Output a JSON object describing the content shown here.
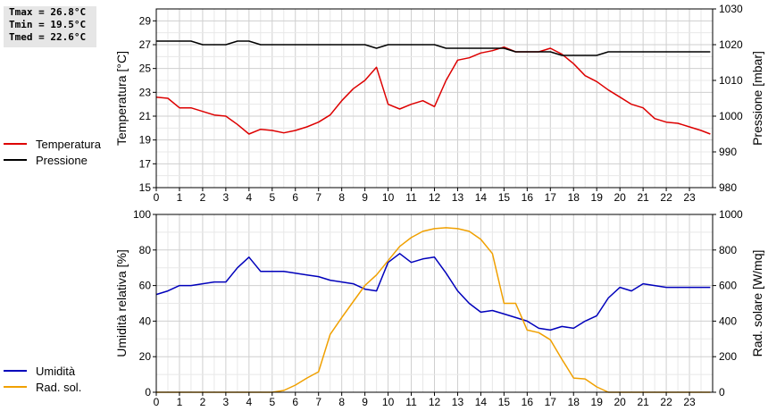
{
  "stats": {
    "tmax": "Tmax = 26.8°C",
    "tmin": "Tmin = 19.5°C",
    "tmed": "Tmed = 22.6°C"
  },
  "chart_data": [
    {
      "type": "line",
      "xlabel": "",
      "xlim": [
        0,
        24
      ],
      "x_ticks": [
        "0",
        "1",
        "2",
        "3",
        "4",
        "5",
        "6",
        "7",
        "8",
        "9",
        "10",
        "11",
        "12",
        "13",
        "14",
        "15",
        "16",
        "17",
        "18",
        "19",
        "20",
        "21",
        "22",
        "23"
      ],
      "ylabel": "Temperatura [°C]",
      "ylim": [
        15,
        30
      ],
      "y_ticks": [
        15,
        17,
        19,
        21,
        23,
        25,
        27,
        29
      ],
      "y2label": "Pressione [mbar]",
      "y2lim": [
        980,
        1030
      ],
      "y2_ticks": [
        980,
        990,
        1000,
        1010,
        1020,
        1030
      ],
      "grid": true,
      "legend": "left",
      "series": [
        {
          "name": "Temperatura",
          "axis": "left",
          "color": "#dd0000",
          "points": [
            [
              0,
              22.6
            ],
            [
              0.5,
              22.5
            ],
            [
              1,
              21.7
            ],
            [
              1.5,
              21.7
            ],
            [
              2,
              21.4
            ],
            [
              2.5,
              21.1
            ],
            [
              3,
              21.0
            ],
            [
              3.5,
              20.3
            ],
            [
              4,
              19.5
            ],
            [
              4.5,
              19.9
            ],
            [
              5,
              19.8
            ],
            [
              5.5,
              19.6
            ],
            [
              6,
              19.8
            ],
            [
              6.5,
              20.1
            ],
            [
              7,
              20.5
            ],
            [
              7.5,
              21.1
            ],
            [
              8,
              22.3
            ],
            [
              8.5,
              23.3
            ],
            [
              9,
              24.0
            ],
            [
              9.5,
              25.1
            ],
            [
              10,
              22.0
            ],
            [
              10.5,
              21.6
            ],
            [
              11,
              22.0
            ],
            [
              11.5,
              22.3
            ],
            [
              12,
              21.8
            ],
            [
              12.5,
              24.0
            ],
            [
              13,
              25.7
            ],
            [
              13.5,
              25.9
            ],
            [
              14,
              26.3
            ],
            [
              14.5,
              26.5
            ],
            [
              15,
              26.8
            ],
            [
              15.5,
              26.4
            ],
            [
              16,
              26.4
            ],
            [
              16.5,
              26.4
            ],
            [
              17,
              26.7
            ],
            [
              17.5,
              26.2
            ],
            [
              18,
              25.4
            ],
            [
              18.5,
              24.4
            ],
            [
              19,
              23.9
            ],
            [
              19.5,
              23.2
            ],
            [
              20,
              22.6
            ],
            [
              20.5,
              22.0
            ],
            [
              21,
              21.7
            ],
            [
              21.5,
              20.8
            ],
            [
              22,
              20.5
            ],
            [
              22.5,
              20.4
            ],
            [
              23,
              20.1
            ],
            [
              23.5,
              19.8
            ],
            [
              23.9,
              19.5
            ]
          ]
        },
        {
          "name": "Pressione",
          "axis": "right",
          "color": "#000000",
          "points": [
            [
              0,
              1021
            ],
            [
              0.5,
              1021
            ],
            [
              1,
              1021
            ],
            [
              1.5,
              1021
            ],
            [
              2,
              1020
            ],
            [
              2.5,
              1020
            ],
            [
              3,
              1020
            ],
            [
              3.5,
              1021
            ],
            [
              4,
              1021
            ],
            [
              4.5,
              1020
            ],
            [
              5,
              1020
            ],
            [
              6,
              1020
            ],
            [
              7,
              1020
            ],
            [
              8,
              1020
            ],
            [
              9,
              1020
            ],
            [
              9.5,
              1019
            ],
            [
              10,
              1020
            ],
            [
              11,
              1020
            ],
            [
              12,
              1020
            ],
            [
              12.5,
              1019
            ],
            [
              13,
              1019
            ],
            [
              14,
              1019
            ],
            [
              15,
              1019
            ],
            [
              15.5,
              1018
            ],
            [
              16,
              1018
            ],
            [
              17,
              1018
            ],
            [
              17.5,
              1017
            ],
            [
              18,
              1017
            ],
            [
              19,
              1017
            ],
            [
              19.5,
              1018
            ],
            [
              20,
              1018
            ],
            [
              21,
              1018
            ],
            [
              22,
              1018
            ],
            [
              23,
              1018
            ],
            [
              23.9,
              1018
            ]
          ]
        }
      ]
    },
    {
      "type": "line",
      "xlabel": "",
      "xlim": [
        0,
        24
      ],
      "x_ticks": [
        "0",
        "1",
        "2",
        "3",
        "4",
        "5",
        "6",
        "7",
        "8",
        "9",
        "10",
        "11",
        "12",
        "13",
        "14",
        "15",
        "16",
        "17",
        "18",
        "19",
        "20",
        "21",
        "22",
        "23"
      ],
      "ylabel": "Umidità relativa [%]",
      "ylim": [
        0,
        100
      ],
      "y_ticks": [
        0,
        20,
        40,
        60,
        80,
        100
      ],
      "y2label": "Rad. solare [W/mq]",
      "y2lim": [
        0,
        1000
      ],
      "y2_ticks": [
        0,
        200,
        400,
        600,
        800,
        1000
      ],
      "grid": true,
      "legend": "left",
      "series": [
        {
          "name": "Umidità",
          "axis": "left",
          "color": "#0000bb",
          "points": [
            [
              0,
              55
            ],
            [
              0.5,
              57
            ],
            [
              1,
              60
            ],
            [
              1.5,
              60
            ],
            [
              2,
              61
            ],
            [
              2.5,
              62
            ],
            [
              3,
              62
            ],
            [
              3.5,
              70
            ],
            [
              4,
              76
            ],
            [
              4.5,
              68
            ],
            [
              5,
              68
            ],
            [
              5.5,
              68
            ],
            [
              6,
              67
            ],
            [
              6.5,
              66
            ],
            [
              7,
              65
            ],
            [
              7.5,
              63
            ],
            [
              8,
              62
            ],
            [
              8.5,
              61
            ],
            [
              9,
              58
            ],
            [
              9.5,
              57
            ],
            [
              10,
              73
            ],
            [
              10.5,
              78
            ],
            [
              11,
              73
            ],
            [
              11.5,
              75
            ],
            [
              12,
              76
            ],
            [
              12.5,
              67
            ],
            [
              13,
              57
            ],
            [
              13.5,
              50
            ],
            [
              14,
              45
            ],
            [
              14.5,
              46
            ],
            [
              15,
              44
            ],
            [
              15.5,
              42
            ],
            [
              16,
              40
            ],
            [
              16.5,
              36
            ],
            [
              17,
              35
            ],
            [
              17.5,
              37
            ],
            [
              18,
              36
            ],
            [
              18.5,
              40
            ],
            [
              19,
              43
            ],
            [
              19.5,
              53
            ],
            [
              20,
              59
            ],
            [
              20.5,
              57
            ],
            [
              21,
              61
            ],
            [
              21.5,
              60
            ],
            [
              22,
              59
            ],
            [
              23,
              59
            ],
            [
              23.9,
              59
            ]
          ]
        },
        {
          "name": "Rad. sol.",
          "axis": "right",
          "color": "#f0a000",
          "points": [
            [
              0,
              0
            ],
            [
              1,
              0
            ],
            [
              2,
              0
            ],
            [
              3,
              0
            ],
            [
              4,
              0
            ],
            [
              5,
              0
            ],
            [
              5.5,
              10
            ],
            [
              6,
              40
            ],
            [
              6.5,
              80
            ],
            [
              7,
              115
            ],
            [
              7.5,
              325
            ],
            [
              8,
              420
            ],
            [
              8.5,
              510
            ],
            [
              9,
              600
            ],
            [
              9.5,
              660
            ],
            [
              10,
              740
            ],
            [
              10.5,
              820
            ],
            [
              11,
              870
            ],
            [
              11.5,
              905
            ],
            [
              12,
              920
            ],
            [
              12.5,
              925
            ],
            [
              13,
              920
            ],
            [
              13.5,
              905
            ],
            [
              14,
              860
            ],
            [
              14.5,
              780
            ],
            [
              15,
              500
            ],
            [
              15.5,
              500
            ],
            [
              16,
              350
            ],
            [
              16.5,
              335
            ],
            [
              17,
              295
            ],
            [
              17.5,
              185
            ],
            [
              18,
              80
            ],
            [
              18.5,
              75
            ],
            [
              19,
              30
            ],
            [
              19.5,
              0
            ],
            [
              20,
              0
            ],
            [
              21,
              0
            ],
            [
              22,
              0
            ],
            [
              23,
              0
            ],
            [
              23.9,
              0
            ]
          ]
        }
      ]
    }
  ]
}
